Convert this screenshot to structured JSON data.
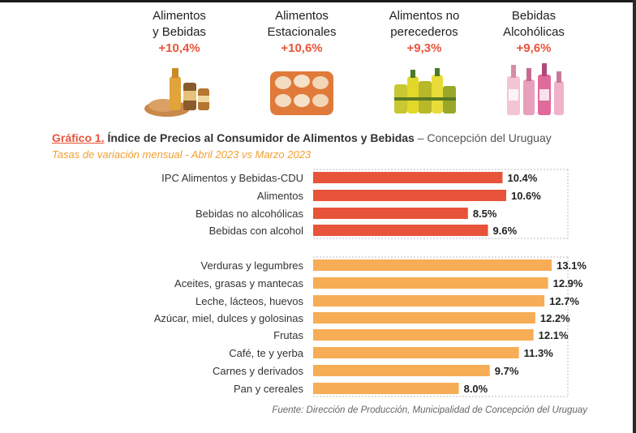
{
  "header_cards": [
    {
      "label": "Alimentos\ny Bebidas",
      "value": "+10,4%",
      "icon": "food-and-drinks-icon"
    },
    {
      "label": "Alimentos\nEstacionales",
      "value": "+10,6%",
      "icon": "eggs-tray-icon"
    },
    {
      "label": "Alimentos no\nperecederos",
      "value": "+9,3%",
      "icon": "canned-goods-icon"
    },
    {
      "label": "Bebidas\nAlcohólicas",
      "value": "+9,6%",
      "icon": "liquor-bottles-icon"
    }
  ],
  "title": {
    "prefix": "Gráfico 1.",
    "main": " Índice de Precios al Consumidor de Alimentos y Bebidas",
    "suffix": " – Concepción del Uruguay"
  },
  "subtitle": "Tasas de variación mensual - Abril 2023 vs Marzo 2023",
  "source": "Fuente: Dirección de Producción, Municipalidad de Concepción del Uruguay",
  "colors": {
    "group1": "#e8543a",
    "group2": "#f7ad55",
    "accent": "#e8543a",
    "subtitle": "#f0a030"
  },
  "chart_data": {
    "type": "bar",
    "orientation": "horizontal",
    "unit": "%",
    "xlim": [
      0,
      14
    ],
    "grid": false,
    "categories": [
      "IPC Alimentos y Bebidas-CDU",
      "Alimentos",
      "Bebidas no alcohólicas",
      "Bebidas con alcohol",
      "Verduras y legumbres",
      "Aceites, grasas y mantecas",
      "Leche, lácteos, huevos",
      "Azúcar, miel, dulces y golosinas",
      "Frutas",
      "Café, te y yerba",
      "Carnes y derivados",
      "Pan y cereales"
    ],
    "values": [
      10.4,
      10.6,
      8.5,
      9.6,
      13.1,
      12.9,
      12.7,
      12.2,
      12.1,
      11.3,
      9.7,
      8.0
    ],
    "value_labels": [
      "10.4%",
      "10.6%",
      "8.5%",
      "9.6%",
      "13.1%",
      "12.9%",
      "12.7%",
      "12.2%",
      "12.1%",
      "11.3%",
      "9.7%",
      "8.0%"
    ],
    "groups": [
      0,
      0,
      0,
      0,
      1,
      1,
      1,
      1,
      1,
      1,
      1,
      1
    ]
  }
}
